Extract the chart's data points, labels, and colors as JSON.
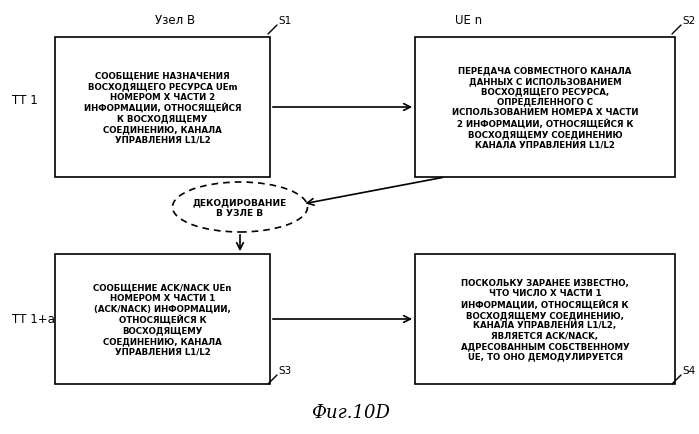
{
  "title": "Фиг.10D",
  "left_header": "Узел В",
  "right_header": "UE n",
  "left_label_top": "ТТ 1",
  "left_label_bottom": "ТТ 1+а",
  "s1_label": "S1",
  "s2_label": "S2",
  "s3_label": "S3",
  "s4_label": "S4",
  "box1_text": "СООБЩЕНИЕ НАЗНАЧЕНИЯ\nВОСХОДЯЩЕГО РЕСУРСА UEm\nНОМЕРОМ X ЧАСТИ 2\nИНФОРМАЦИИ, ОТНОСЯЩЕЙСЯ\nК ВОСХОДЯЩЕМУ\nСОЕДИНЕНИЮ, КАНАЛА\nУПРАВЛЕНИЯ L1/L2",
  "box2_text": "ПЕРЕДАЧА СОВМЕСТНОГО КАНАЛА\nДАННЫХ С ИСПОЛЬЗОВАНИЕМ\nВОСХОДЯЩЕГО РЕСУРСА,\nОПРЕДЕЛЕННОГО С\nИСПОЛЬЗОВАНИЕМ НОМЕРА X ЧАСТИ\n2 ИНФОРМАЦИИ, ОТНОСЯЩЕЙСЯ К\nВОСХОДЯЩЕМУ СОЕДИНЕНИЮ\nКАНАЛА УПРАВЛЕНИЯ L1/L2",
  "ellipse_text": "ДЕКОДИРОВАНИЕ\nВ УЗЛЕ В",
  "box3_text": "СООБЩЕНИЕ ACK/NACK UEn\nНОМЕРОМ X ЧАСТИ 1\n(ACK/NACK) ИНФОРМАЦИИ,\nОТНОСЯЩЕЙСЯ К\nВОСХОДЯЩЕМУ\nСОЕДИНЕНИЮ, КАНАЛА\nУПРАВЛЕНИЯ L1/L2",
  "box4_text": "ПОСКОЛЬКУ ЗАРАНЕЕ ИЗВЕСТНО,\nЧТО ЧИСЛО X ЧАСТИ 1\nИНФОРМАЦИИ, ОТНОСЯЩЕЙСЯ К\nВОСХОДЯЩЕМУ СОЕДИНЕНИЮ,\nКАНАЛА УПРАВЛЕНИЯ L1/L2,\nЯВЛЯЕТСЯ ACK/NACK,\nАДРЕСОВАННЫМ СОБСТВЕННОМУ\nUE, ТО ОНО ДЕМОДУЛИРУЕТСЯ",
  "bg_color": "#ffffff",
  "box_color": "#ffffff",
  "box_edge_color": "#000000",
  "text_color": "#000000",
  "font_size": 6.2,
  "header_font_size": 8.5,
  "title_font_size": 13
}
